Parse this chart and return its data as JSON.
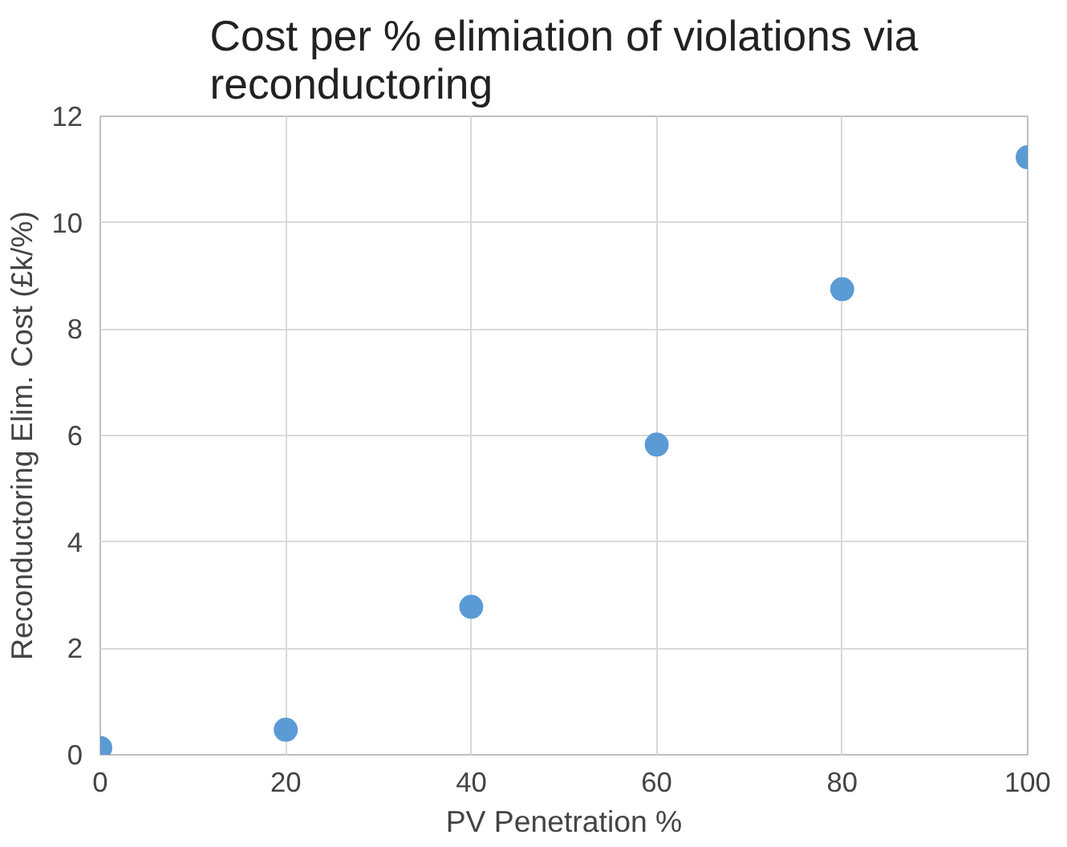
{
  "chart_data": {
    "type": "scatter",
    "title": "Cost per % elimiation of violations via reconductoring",
    "xlabel": "PV Penetration %",
    "ylabel": "Reconductoring Elim. Cost (£k/%)",
    "x": [
      0,
      20,
      40,
      60,
      80,
      100
    ],
    "series": [
      {
        "color": "#5b9bd5",
        "values": [
          0.13,
          0.47,
          2.78,
          5.83,
          8.75,
          11.23
        ]
      }
    ],
    "xlim": [
      0,
      100
    ],
    "xticks": [
      0,
      20,
      40,
      60,
      80,
      100
    ],
    "ylim": [
      0,
      12
    ],
    "yticks": [
      0,
      2,
      4,
      6,
      8,
      10,
      12
    ],
    "grid": true,
    "marker": "circle"
  }
}
